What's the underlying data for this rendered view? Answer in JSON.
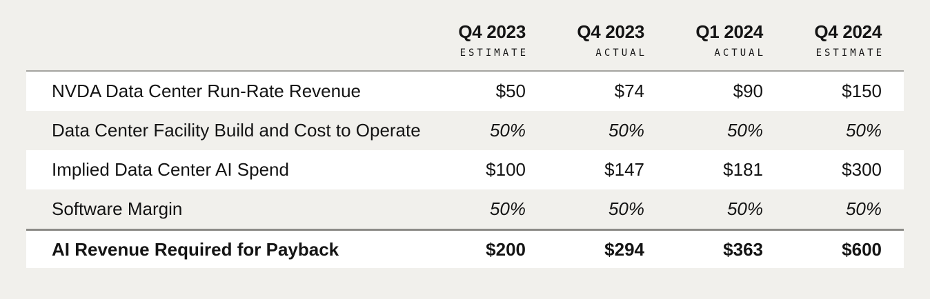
{
  "colors": {
    "page_background": "#f1f0ec",
    "row_highlight": "#ffffff",
    "text": "#141414",
    "rule_light": "#a5a4a0",
    "rule_heavy": "#8c8b87"
  },
  "chart_data": {
    "type": "table",
    "title": "",
    "column_headers": [
      {
        "period": "Q4 2023",
        "qualifier": "ESTIMATE"
      },
      {
        "period": "Q4 2023",
        "qualifier": "ACTUAL"
      },
      {
        "period": "Q1 2024",
        "qualifier": "ACTUAL"
      },
      {
        "period": "Q4 2024",
        "qualifier": "ESTIMATE"
      }
    ],
    "rows": [
      {
        "label": "NVDA Data Center Run-Rate Revenue",
        "values": [
          "$50",
          "$74",
          "$90",
          "$150"
        ],
        "emphasis": "normal"
      },
      {
        "label": "Data Center Facility Build and Cost to Operate",
        "values": [
          "50%",
          "50%",
          "50%",
          "50%"
        ],
        "emphasis": "italic"
      },
      {
        "label": "Implied Data Center AI Spend",
        "values": [
          "$100",
          "$147",
          "$181",
          "$300"
        ],
        "emphasis": "normal"
      },
      {
        "label": "Software Margin",
        "values": [
          "50%",
          "50%",
          "50%",
          "50%"
        ],
        "emphasis": "italic"
      },
      {
        "label": "AI Revenue Required for Payback",
        "values": [
          "$200",
          "$294",
          "$363",
          "$600"
        ],
        "emphasis": "bold"
      }
    ]
  }
}
